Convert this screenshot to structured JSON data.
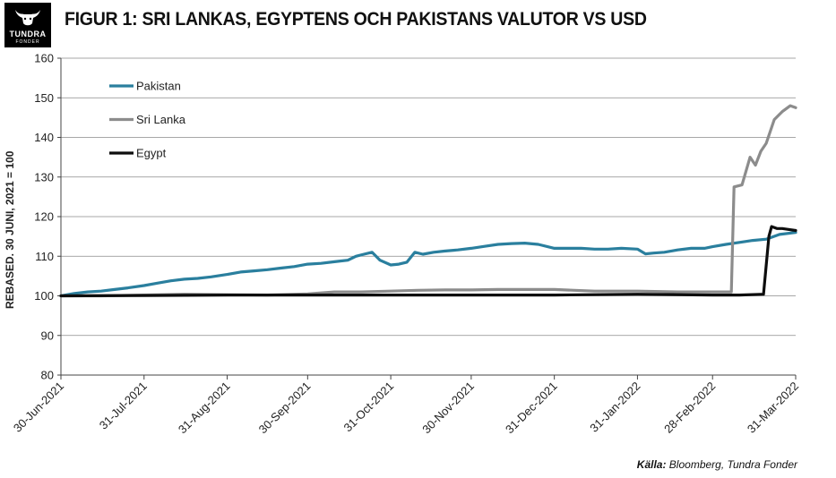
{
  "header": {
    "logo_text": "TUNDRA",
    "logo_subtext": "FONDER",
    "title": "FIGUR 1: SRI LANKAS, EGYPTENS OCH PAKISTANS VALUTOR VS USD"
  },
  "source": {
    "label": "Källa:",
    "text": " Bloomberg, Tundra Fonder"
  },
  "colors": {
    "Pakistan": "#2a7f9e",
    "Sri Lanka": "#8c8c8c",
    "Egypt": "#0d0d0d",
    "grid": "#8a8a8a",
    "axis": "#444444"
  },
  "chart_data": {
    "type": "line",
    "title": "FIGUR 1: SRI LANKAS, EGYPTENS OCH PAKISTANS VALUTOR VS USD",
    "xlabel": "",
    "ylabel": "REBASED. 30 JUNI, 2021 = 100",
    "xlim": [
      "2021-06-30",
      "2022-03-31"
    ],
    "ylim": [
      80,
      160
    ],
    "y_ticks": [
      80,
      90,
      100,
      110,
      120,
      130,
      140,
      150,
      160
    ],
    "x_ticks": [
      "2021-06-30",
      "2021-07-31",
      "2021-08-31",
      "2021-09-30",
      "2021-10-31",
      "2021-11-30",
      "2021-12-31",
      "2022-01-31",
      "2022-02-28",
      "2022-03-31"
    ],
    "x_tick_labels": [
      "30-Jun-2021",
      "31-Jul-2021",
      "31-Aug-2021",
      "30-Sep-2021",
      "31-Oct-2021",
      "30-Nov-2021",
      "31-Dec-2021",
      "31-Jan-2022",
      "28-Feb-2022",
      "31-Mar-2022"
    ],
    "grid": "horizontal",
    "legend_position": "top-left",
    "series": [
      {
        "name": "Pakistan",
        "x": [
          "2021-06-30",
          "2021-07-05",
          "2021-07-10",
          "2021-07-15",
          "2021-07-20",
          "2021-07-25",
          "2021-07-31",
          "2021-08-05",
          "2021-08-10",
          "2021-08-15",
          "2021-08-20",
          "2021-08-25",
          "2021-08-31",
          "2021-09-05",
          "2021-09-10",
          "2021-09-15",
          "2021-09-20",
          "2021-09-25",
          "2021-09-30",
          "2021-10-05",
          "2021-10-10",
          "2021-10-15",
          "2021-10-18",
          "2021-10-21",
          "2021-10-24",
          "2021-10-27",
          "2021-10-31",
          "2021-11-03",
          "2021-11-06",
          "2021-11-09",
          "2021-11-12",
          "2021-11-16",
          "2021-11-20",
          "2021-11-25",
          "2021-11-30",
          "2021-12-05",
          "2021-12-10",
          "2021-12-15",
          "2021-12-20",
          "2021-12-25",
          "2021-12-31",
          "2022-01-05",
          "2022-01-10",
          "2022-01-15",
          "2022-01-20",
          "2022-01-25",
          "2022-01-31",
          "2022-02-03",
          "2022-02-06",
          "2022-02-10",
          "2022-02-15",
          "2022-02-20",
          "2022-02-25",
          "2022-02-28",
          "2022-03-05",
          "2022-03-10",
          "2022-03-15",
          "2022-03-20",
          "2022-03-25",
          "2022-03-31"
        ],
        "values": [
          100,
          100.6,
          101,
          101.2,
          101.6,
          102,
          102.6,
          103.2,
          103.8,
          104.2,
          104.4,
          104.8,
          105.4,
          106,
          106.3,
          106.6,
          107,
          107.4,
          108,
          108.2,
          108.6,
          109,
          110,
          110.5,
          111,
          109,
          107.8,
          108,
          108.5,
          111,
          110.5,
          111,
          111.3,
          111.6,
          112,
          112.5,
          113,
          113.2,
          113.3,
          113,
          112,
          112,
          112,
          111.8,
          111.8,
          112,
          111.8,
          110.6,
          110.8,
          111,
          111.6,
          112,
          112,
          112.4,
          113,
          113.5,
          114,
          114.3,
          115.5,
          116
        ]
      },
      {
        "name": "Sri Lanka",
        "x": [
          "2021-06-30",
          "2021-07-15",
          "2021-07-31",
          "2021-08-15",
          "2021-08-31",
          "2021-09-15",
          "2021-09-30",
          "2021-10-10",
          "2021-10-20",
          "2021-10-31",
          "2021-11-10",
          "2021-11-20",
          "2021-11-30",
          "2021-12-10",
          "2021-12-20",
          "2021-12-31",
          "2022-01-15",
          "2022-01-31",
          "2022-02-15",
          "2022-02-28",
          "2022-03-04",
          "2022-03-07",
          "2022-03-08",
          "2022-03-11",
          "2022-03-14",
          "2022-03-16",
          "2022-03-18",
          "2022-03-20",
          "2022-03-23",
          "2022-03-26",
          "2022-03-29",
          "2022-03-31"
        ],
        "values": [
          100,
          100,
          100.2,
          100.4,
          100.3,
          100.2,
          100.5,
          101,
          101,
          101.2,
          101.4,
          101.5,
          101.5,
          101.6,
          101.6,
          101.6,
          101.2,
          101.2,
          101,
          101,
          101,
          101,
          127.5,
          128,
          135,
          133,
          136.5,
          138.5,
          144.5,
          146.5,
          148,
          147.5
        ]
      },
      {
        "name": "Egypt",
        "x": [
          "2021-06-30",
          "2021-07-31",
          "2021-08-31",
          "2021-09-30",
          "2021-10-31",
          "2021-11-30",
          "2021-12-31",
          "2022-01-31",
          "2022-02-28",
          "2022-03-10",
          "2022-03-19",
          "2022-03-21",
          "2022-03-22",
          "2022-03-24",
          "2022-03-26",
          "2022-03-28",
          "2022-03-31"
        ],
        "values": [
          100,
          100.1,
          100.2,
          100.2,
          100.2,
          100.2,
          100.2,
          100.4,
          100.2,
          100.2,
          100.4,
          115,
          117.5,
          117,
          117,
          116.8,
          116.5
        ]
      }
    ]
  }
}
